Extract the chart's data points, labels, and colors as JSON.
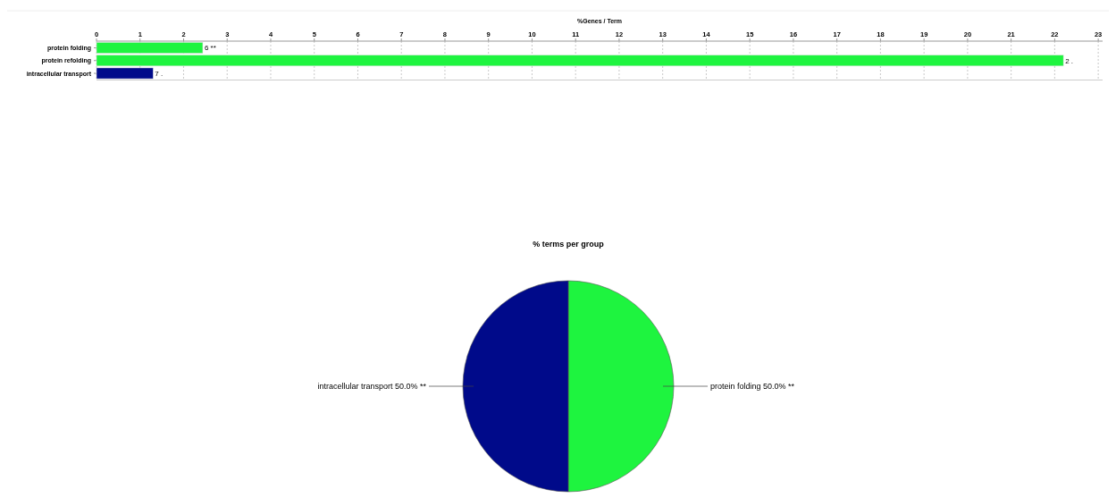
{
  "chart_data": [
    {
      "type": "bar",
      "orientation": "horizontal",
      "xlabel": "%Genes / Term",
      "categories": [
        "protein folding",
        "protein refolding",
        "intracellular transport"
      ],
      "values": [
        2.44,
        22.2,
        1.3
      ],
      "colors": [
        "#1ef43f",
        "#1ef43f",
        "#000a8a"
      ],
      "annotations": [
        {
          "text": "6 **",
          "x": 2.44,
          "y": "protein folding"
        },
        {
          "text": "2 .",
          "x": 22.2,
          "y": "protein refolding"
        },
        {
          "text": "7 .",
          "x": 1.3,
          "y": "intracellular transport"
        }
      ],
      "xlim": [
        0,
        23.1
      ],
      "xticks": [
        0,
        1,
        2,
        3,
        4,
        5,
        6,
        7,
        8,
        9,
        10,
        11,
        12,
        13,
        14,
        15,
        16,
        17,
        18,
        19,
        20,
        21,
        22,
        23
      ],
      "grid": "x"
    },
    {
      "type": "pie",
      "title": "% terms per group",
      "categories": [
        "protein folding",
        "intracellular transport"
      ],
      "values": [
        50,
        50
      ],
      "colors": [
        "#1ef43f",
        "#000a8a"
      ],
      "value_labels": [
        "50.0% **",
        "50.0% **"
      ]
    }
  ]
}
